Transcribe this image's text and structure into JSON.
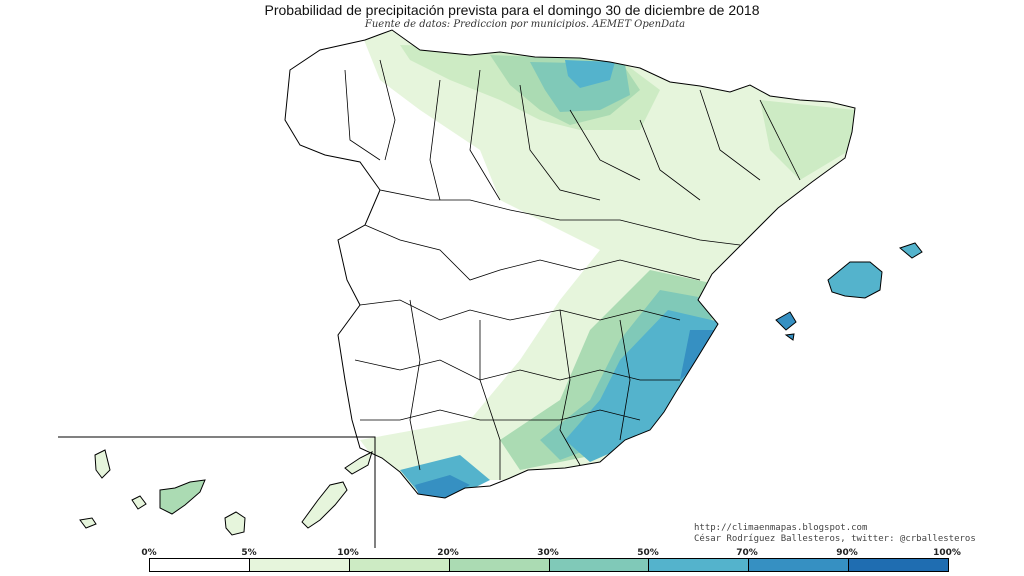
{
  "title": "Probabilidad de precipitación prevista para el domingo 30 de diciembre de 2018",
  "subtitle": "Fuente de datos: Prediccion por municipios. AEMET OpenData",
  "credits": {
    "url": "http://climaenmapas.blogspot.com",
    "author": "César Rodríguez Ballesteros, twitter: @crballesteros"
  },
  "legend": {
    "labels": [
      "0%",
      "5%",
      "10%",
      "20%",
      "30%",
      "50%",
      "70%",
      "90%",
      "100%"
    ],
    "colors": [
      "#ffffff",
      "#e6f5dc",
      "#cdebc4",
      "#abdbb3",
      "#80c9b8",
      "#54b3cc",
      "#3690c2",
      "#1f6db1"
    ]
  },
  "regions": {
    "galicia": "5%",
    "cantabrian_coast": "20%",
    "navarra": "50%",
    "catalonia": "10%",
    "balearic_islands": "50%",
    "valencia": "70%",
    "murcia": "70%",
    "almeria": "50%",
    "malaga": "70%",
    "canary_islands": "30%",
    "centre": "0%"
  }
}
